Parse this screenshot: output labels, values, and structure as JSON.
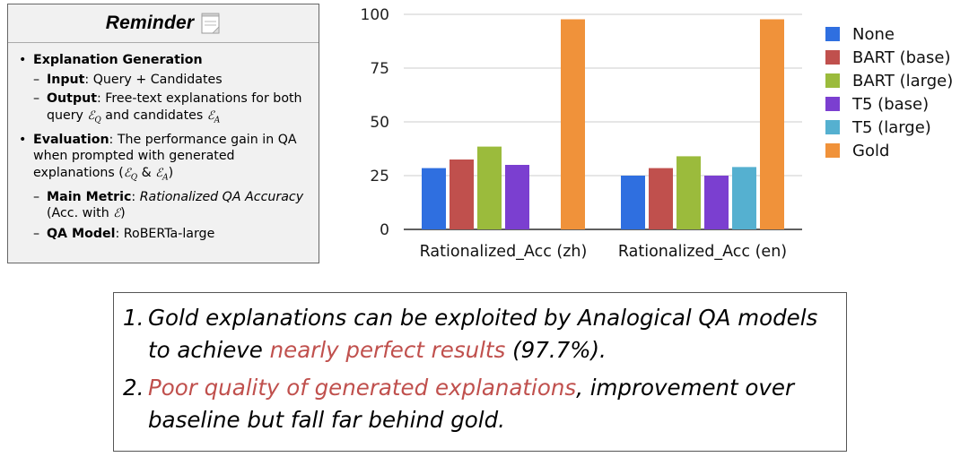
{
  "reminder": {
    "title": "Reminder",
    "items": [
      {
        "label": "Explanation Generation"
      },
      {
        "label": "Input",
        "text": ": Query + Candidates"
      },
      {
        "label": "Output",
        "text": ": Free-text explanations for both query",
        "and": "and candidates"
      },
      {
        "label": "Evaluation",
        "text": ": The performance gain in QA when prompted with generated explanations (",
        "amp": "&",
        "close": ")"
      },
      {
        "label": "Main Metric",
        "text": ": ",
        "italic": "Rationalized QA Accuracy",
        "tail": " (Acc. with ",
        "tail_close": ")"
      },
      {
        "label": "QA Model",
        "text": ": RoBERTa-large"
      }
    ],
    "symbols": {
      "E": "ℰ",
      "Q": "Q",
      "A": "A"
    }
  },
  "chart_data": {
    "type": "bar",
    "categories": [
      "Rationalized_Acc (zh)",
      "Rationalized_Acc (en)"
    ],
    "series": [
      {
        "name": "None",
        "color": "#2f6fe0",
        "values": [
          28.5,
          25.0
        ]
      },
      {
        "name": "BART (base)",
        "color": "#c0504d",
        "values": [
          32.5,
          28.5
        ]
      },
      {
        "name": "BART (large)",
        "color": "#9bbb3c",
        "values": [
          38.5,
          34.0
        ]
      },
      {
        "name": "T5 (base)",
        "color": "#7b3fd0",
        "values": [
          30.0,
          25.0
        ]
      },
      {
        "name": "T5 (large)",
        "color": "#55b0d0",
        "values": [
          null,
          29.0
        ]
      },
      {
        "name": "Gold",
        "color": "#f0923a",
        "values": [
          97.7,
          97.7
        ]
      }
    ],
    "yticks": [
      0,
      25,
      50,
      75,
      100
    ],
    "ylim": [
      0,
      100
    ],
    "grid": true,
    "legend": "right"
  },
  "conclusions": {
    "item1": {
      "num": "1.",
      "pre": "Gold explanations can be exploited by Analogical QA models to achieve ",
      "highlight": "nearly perfect results",
      "post": " (97.7%)."
    },
    "item2": {
      "num": "2.",
      "highlight": "Poor quality of generated explanations",
      "post": ", improvement over baseline but fall far behind gold."
    }
  }
}
